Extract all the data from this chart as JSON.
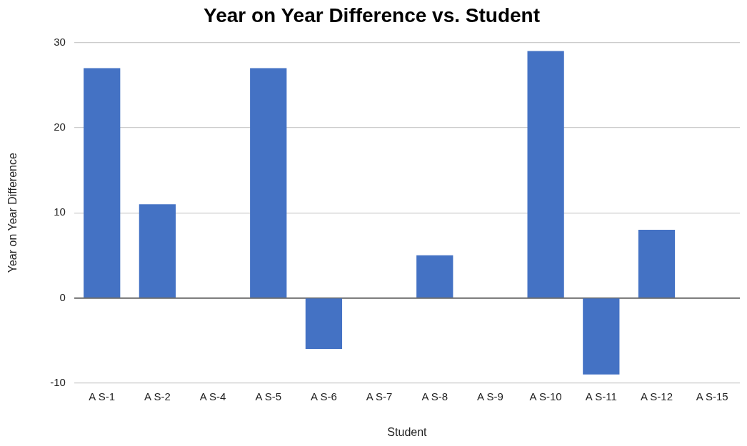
{
  "chart_data": {
    "type": "bar",
    "title": "Year on Year Difference vs. Student",
    "xlabel": "Student",
    "ylabel": "Year on Year Difference",
    "categories": [
      "A S-1",
      "A S-2",
      "A S-4",
      "A S-5",
      "A S-6",
      "A S-7",
      "A S-8",
      "A S-9",
      "A S-10",
      "A S-11",
      "A S-12",
      "A S-15"
    ],
    "values": [
      27,
      11,
      0,
      27,
      -6,
      0,
      5,
      0,
      29,
      -9,
      8,
      0
    ],
    "color": "#4472c4",
    "ylim": [
      -10,
      30
    ],
    "yticks": [
      -10,
      0,
      10,
      20,
      30
    ],
    "grid": "y",
    "legend": false
  }
}
